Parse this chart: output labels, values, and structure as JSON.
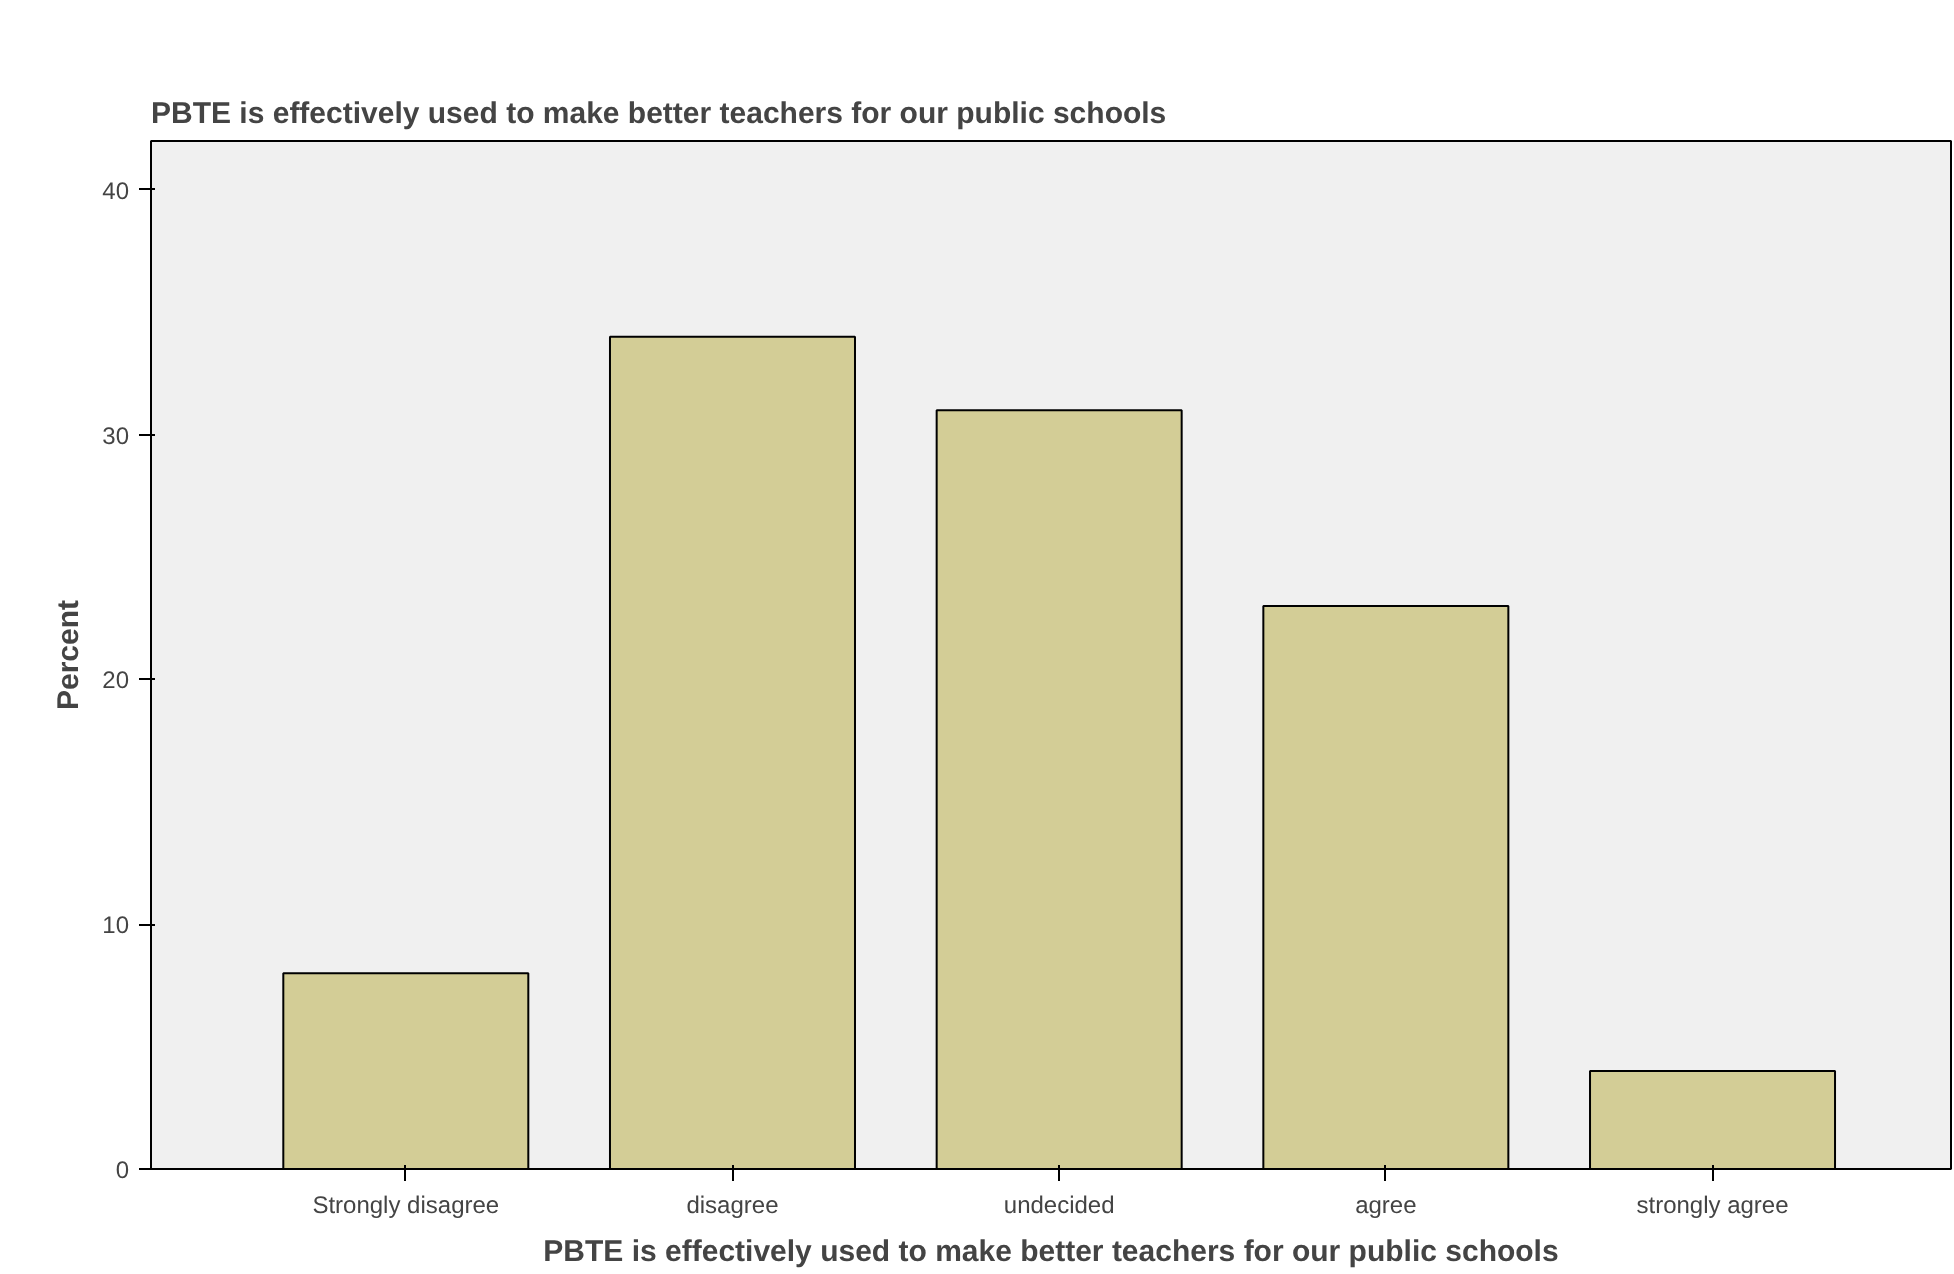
{
  "chart_data": {
    "type": "bar",
    "title": "PBTE is effectively used to make better teachers for our public schools",
    "xlabel": "PBTE is effectively used to make better teachers for our public schools",
    "ylabel": "Percent",
    "categories": [
      "Strongly disagree",
      "disagree",
      "undecided",
      "agree",
      "strongly agree"
    ],
    "values": [
      8,
      34,
      31,
      23,
      4
    ],
    "color": "#d3cd96",
    "ylim": [
      0,
      42
    ],
    "yticks": [
      0,
      10,
      20,
      30,
      40
    ],
    "grid": false
  }
}
